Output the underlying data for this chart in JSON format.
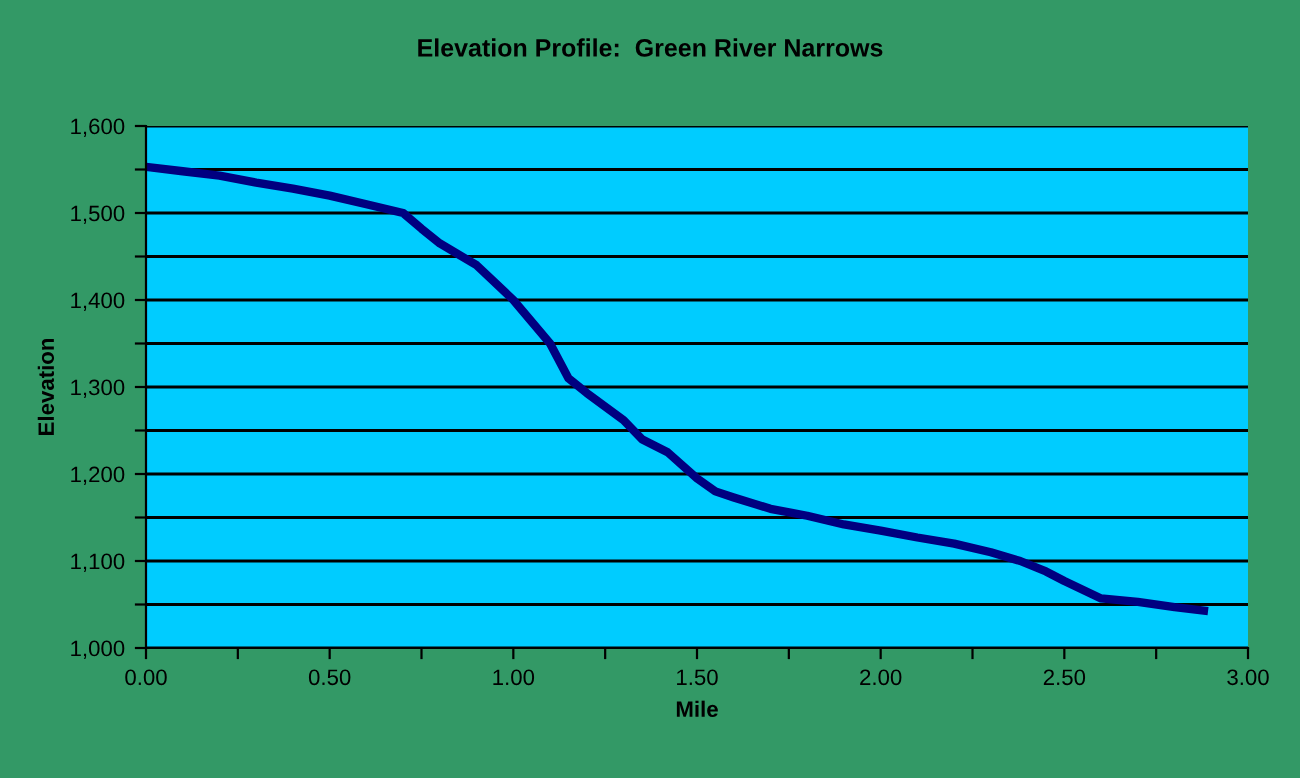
{
  "chart_data": {
    "type": "line",
    "title": "Elevation Profile:  Green River Narrows",
    "xlabel": "Mile",
    "ylabel": "Elevation",
    "x": [
      0,
      0.1,
      0.2,
      0.3,
      0.4,
      0.5,
      0.6,
      0.7,
      0.75,
      0.8,
      0.9,
      1.0,
      1.1,
      1.15,
      1.2,
      1.3,
      1.35,
      1.42,
      1.5,
      1.55,
      1.6,
      1.7,
      1.8,
      1.9,
      2.0,
      2.1,
      2.2,
      2.3,
      2.38,
      2.45,
      2.5,
      2.6,
      2.7,
      2.8,
      2.88
    ],
    "series": [
      {
        "color": "#000080",
        "values": [
          1553,
          1548,
          1543,
          1535,
          1528,
          1520,
          1510,
          1500,
          1482,
          1465,
          1440,
          1400,
          1350,
          1310,
          1293,
          1262,
          1240,
          1225,
          1195,
          1180,
          1173,
          1160,
          1152,
          1142,
          1135,
          1127,
          1120,
          1110,
          1100,
          1088,
          1077,
          1057,
          1053,
          1047,
          1043
        ]
      }
    ],
    "xlim": [
      0,
      3
    ],
    "ylim": [
      1000,
      1600
    ],
    "xticks": [
      {
        "value": 0,
        "label": "0.00"
      },
      {
        "value": 0.25,
        "label": null
      },
      {
        "value": 0.5,
        "label": "0.50"
      },
      {
        "value": 0.75,
        "label": null
      },
      {
        "value": 1.0,
        "label": "1.00"
      },
      {
        "value": 1.25,
        "label": null
      },
      {
        "value": 1.5,
        "label": "1.50"
      },
      {
        "value": 1.75,
        "label": null
      },
      {
        "value": 2.0,
        "label": "2.00"
      },
      {
        "value": 2.25,
        "label": null
      },
      {
        "value": 2.5,
        "label": "2.50"
      },
      {
        "value": 2.75,
        "label": null
      },
      {
        "value": 3.0,
        "label": "3.00"
      }
    ],
    "yticks": [
      {
        "value": 1000,
        "label": "1,000"
      },
      {
        "value": 1050,
        "label": null
      },
      {
        "value": 1100,
        "label": "1,100"
      },
      {
        "value": 1150,
        "label": null
      },
      {
        "value": 1200,
        "label": "1,200"
      },
      {
        "value": 1250,
        "label": null
      },
      {
        "value": 1300,
        "label": "1,300"
      },
      {
        "value": 1350,
        "label": null
      },
      {
        "value": 1400,
        "label": "1,400"
      },
      {
        "value": 1450,
        "label": null
      },
      {
        "value": 1500,
        "label": "1,500"
      },
      {
        "value": 1550,
        "label": null
      },
      {
        "value": 1600,
        "label": "1,600"
      }
    ],
    "grid": "y",
    "marker": "none",
    "line_style": "solid"
  }
}
